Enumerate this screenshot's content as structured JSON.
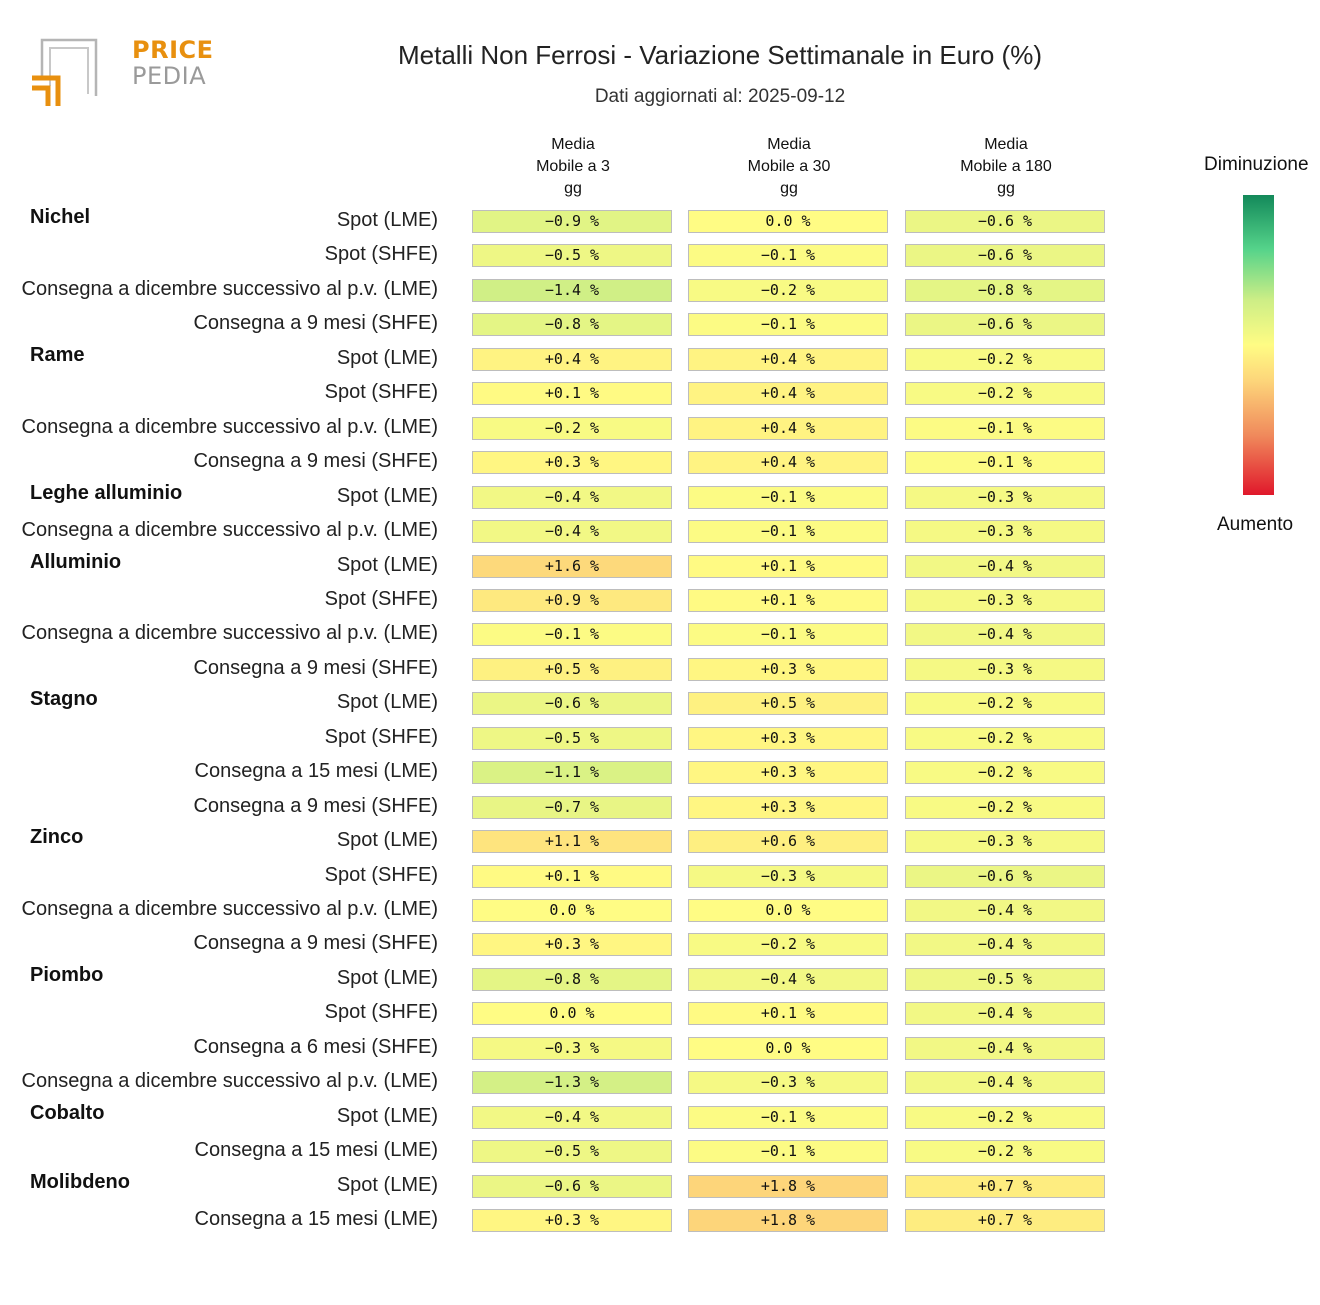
{
  "header": {
    "title": "Metalli Non Ferrosi - Variazione Settimanale in Euro (%)",
    "subtitle": "Dati aggiornati al: 2025-09-12",
    "logo_price": "PRICE",
    "logo_pedia": "PEDIA"
  },
  "legend": {
    "top_label": "Diminuzione",
    "bottom_label": "Aumento"
  },
  "colors": {
    "strong_decrease": "#13895a",
    "neutral": "#fffc84",
    "strong_increase": "#e0182b",
    "logo_orange": "#e8900f",
    "logo_grey": "#9a9a9a"
  },
  "chart_data": {
    "type": "table",
    "columns": [
      "Media\nMobile a 3\ngg",
      "Media\nMobile a 30\ngg",
      "Media\nMobile a 180\ngg"
    ],
    "rows": [
      {
        "group": "Nichel",
        "label": "Spot (LME)",
        "values": [
          -0.9,
          0.0,
          -0.6
        ]
      },
      {
        "group": "",
        "label": "Spot (SHFE)",
        "values": [
          -0.5,
          -0.1,
          -0.6
        ]
      },
      {
        "group": "",
        "label": "Consegna a dicembre successivo al p.v. (LME)",
        "values": [
          -1.4,
          -0.2,
          -0.8
        ]
      },
      {
        "group": "",
        "label": "Consegna a 9 mesi (SHFE)",
        "values": [
          -0.8,
          -0.1,
          -0.6
        ]
      },
      {
        "group": "Rame",
        "label": "Spot (LME)",
        "values": [
          0.4,
          0.4,
          -0.2
        ]
      },
      {
        "group": "",
        "label": "Spot (SHFE)",
        "values": [
          0.1,
          0.4,
          -0.2
        ]
      },
      {
        "group": "",
        "label": "Consegna a dicembre successivo al p.v. (LME)",
        "values": [
          -0.2,
          0.4,
          -0.1
        ]
      },
      {
        "group": "",
        "label": "Consegna a 9 mesi (SHFE)",
        "values": [
          0.3,
          0.4,
          -0.1
        ]
      },
      {
        "group": "Leghe alluminio",
        "label": "Spot (LME)",
        "values": [
          -0.4,
          -0.1,
          -0.3
        ]
      },
      {
        "group": "",
        "label": "Consegna a dicembre successivo al p.v. (LME)",
        "values": [
          -0.4,
          -0.1,
          -0.3
        ]
      },
      {
        "group": "Alluminio",
        "label": "Spot (LME)",
        "values": [
          1.6,
          0.1,
          -0.4
        ]
      },
      {
        "group": "",
        "label": "Spot (SHFE)",
        "values": [
          0.9,
          0.1,
          -0.3
        ]
      },
      {
        "group": "",
        "label": "Consegna a dicembre successivo al p.v. (LME)",
        "values": [
          -0.1,
          -0.1,
          -0.4
        ]
      },
      {
        "group": "",
        "label": "Consegna a 9 mesi (SHFE)",
        "values": [
          0.5,
          0.3,
          -0.3
        ]
      },
      {
        "group": "Stagno",
        "label": "Spot (LME)",
        "values": [
          -0.6,
          0.5,
          -0.2
        ]
      },
      {
        "group": "",
        "label": "Spot (SHFE)",
        "values": [
          -0.5,
          0.3,
          -0.2
        ]
      },
      {
        "group": "",
        "label": "Consegna a 15 mesi (LME)",
        "values": [
          -1.1,
          0.3,
          -0.2
        ]
      },
      {
        "group": "",
        "label": "Consegna a 9 mesi (SHFE)",
        "values": [
          -0.7,
          0.3,
          -0.2
        ]
      },
      {
        "group": "Zinco",
        "label": "Spot (LME)",
        "values": [
          1.1,
          0.6,
          -0.3
        ]
      },
      {
        "group": "",
        "label": "Spot (SHFE)",
        "values": [
          0.1,
          -0.3,
          -0.6
        ]
      },
      {
        "group": "",
        "label": "Consegna a dicembre successivo al p.v. (LME)",
        "values": [
          0.0,
          0.0,
          -0.4
        ]
      },
      {
        "group": "",
        "label": "Consegna a 9 mesi (SHFE)",
        "values": [
          0.3,
          -0.2,
          -0.4
        ]
      },
      {
        "group": "Piombo",
        "label": "Spot (LME)",
        "values": [
          -0.8,
          -0.4,
          -0.5
        ]
      },
      {
        "group": "",
        "label": "Spot (SHFE)",
        "values": [
          0.0,
          0.1,
          -0.4
        ]
      },
      {
        "group": "",
        "label": "Consegna a 6 mesi (SHFE)",
        "values": [
          -0.3,
          0.0,
          -0.4
        ]
      },
      {
        "group": "",
        "label": "Consegna a dicembre successivo al p.v. (LME)",
        "values": [
          -1.3,
          -0.3,
          -0.4
        ]
      },
      {
        "group": "Cobalto",
        "label": "Spot (LME)",
        "values": [
          -0.4,
          -0.1,
          -0.2
        ]
      },
      {
        "group": "",
        "label": "Consegna a 15 mesi (LME)",
        "values": [
          -0.5,
          -0.1,
          -0.2
        ]
      },
      {
        "group": "Molibdeno",
        "label": "Spot (LME)",
        "values": [
          -0.6,
          1.8,
          0.7
        ]
      },
      {
        "group": "",
        "label": "Consegna a 15 mesi (LME)",
        "values": [
          0.3,
          1.8,
          0.7
        ]
      }
    ]
  }
}
